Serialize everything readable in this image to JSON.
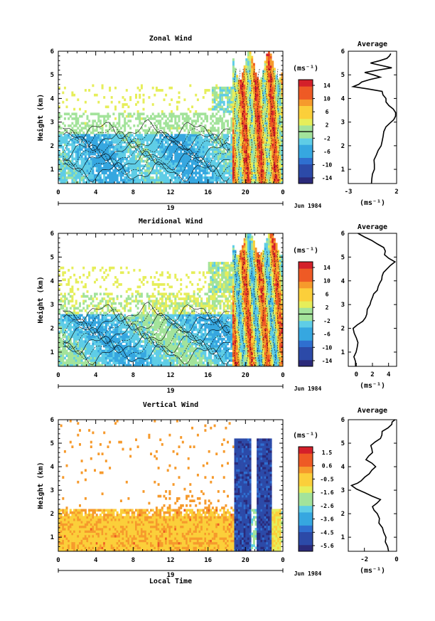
{
  "date_label": "Jun 1984",
  "shared_xlabel": "Local Time",
  "chart_data": [
    {
      "type": "heatmap",
      "title": "Zonal Wind",
      "ylabel": "Height (km)",
      "ylim": [
        0.4,
        6
      ],
      "yticks": [
        "1",
        "2",
        "3",
        "4",
        "5",
        "6"
      ],
      "xlim_hours": [
        0,
        24
      ],
      "xticks": [
        "0",
        "4",
        "8",
        "12",
        "16",
        "20",
        "0"
      ],
      "day_label": "19",
      "colorbar_unit": "(ms⁻¹)",
      "colorbar_ticks": [
        "14",
        "10",
        "6",
        "2",
        "-2",
        "-6",
        "-10",
        "-14"
      ],
      "colorbar_range": [
        -16,
        16
      ],
      "colormap": [
        "#2b2a7a",
        "#2c4aa8",
        "#2f6fd0",
        "#36a7e0",
        "#5fcde6",
        "#a3e39b",
        "#e6ee5a",
        "#fbcf3a",
        "#f69a2c",
        "#ee5a25",
        "#d4202a"
      ],
      "profile": {
        "title": "Average",
        "xlabel": "(ms⁻¹)",
        "xlim": [
          -3,
          2
        ],
        "xticks": [
          "-3",
          "2"
        ],
        "yticks": [
          "1",
          "2",
          "3",
          "4",
          "5",
          "6"
        ],
        "heights": [
          0.4,
          0.8,
          1.2,
          1.6,
          2.0,
          2.4,
          2.8,
          3.1,
          3.4,
          3.7,
          4.0,
          4.3,
          4.5,
          4.7,
          4.9,
          5.1,
          5.3,
          5.5,
          5.7,
          5.9
        ],
        "values": [
          -0.6,
          -0.5,
          -0.3,
          -0.1,
          0.4,
          0.6,
          0.9,
          1.7,
          1.9,
          1.2,
          0.9,
          0.5,
          -2.5,
          -1.6,
          0.3,
          -1.3,
          1.5,
          -0.7,
          1.0,
          1.4
        ]
      }
    },
    {
      "type": "heatmap",
      "title": "Meridional Wind",
      "ylabel": "Height (km)",
      "ylim": [
        0.4,
        6
      ],
      "yticks": [
        "1",
        "2",
        "3",
        "4",
        "5",
        "6"
      ],
      "xlim_hours": [
        0,
        24
      ],
      "xticks": [
        "0",
        "4",
        "8",
        "12",
        "16",
        "20",
        "0"
      ],
      "day_label": "19",
      "colorbar_unit": "(ms⁻¹)",
      "colorbar_ticks": [
        "14",
        "10",
        "6",
        "2",
        "-2",
        "-6",
        "-10",
        "-14"
      ],
      "colorbar_range": [
        -16,
        16
      ],
      "colormap": [
        "#2b2a7a",
        "#2c4aa8",
        "#2f6fd0",
        "#36a7e0",
        "#5fcde6",
        "#a3e39b",
        "#e6ee5a",
        "#fbcf3a",
        "#f69a2c",
        "#ee5a25",
        "#d4202a"
      ],
      "profile": {
        "title": "Average",
        "xlabel": "(ms⁻¹)",
        "xlim": [
          -1,
          5
        ],
        "xticks": [
          "0",
          "2",
          "4"
        ],
        "yticks": [
          "1",
          "2",
          "3",
          "4",
          "5",
          "6"
        ],
        "heights": [
          0.4,
          0.8,
          1.2,
          1.6,
          2.0,
          2.3,
          2.6,
          3.0,
          3.3,
          3.6,
          3.9,
          4.2,
          4.5,
          4.8,
          5.1,
          5.4,
          5.7,
          6.0
        ],
        "values": [
          -0.1,
          -0.3,
          0.1,
          0.0,
          -0.4,
          0.8,
          1.3,
          1.7,
          2.0,
          2.6,
          2.9,
          3.2,
          3.8,
          4.8,
          3.5,
          3.4,
          1.9,
          0.2
        ]
      }
    },
    {
      "type": "heatmap",
      "title": "Vertical Wind",
      "ylabel": "Height (km)",
      "ylim": [
        0.4,
        6
      ],
      "yticks": [
        "1",
        "2",
        "3",
        "4",
        "5",
        "6"
      ],
      "xlim_hours": [
        0,
        24
      ],
      "xticks": [
        "0",
        "4",
        "8",
        "12",
        "16",
        "20",
        "0"
      ],
      "day_label": "19",
      "colorbar_unit": "(ms⁻¹)",
      "colorbar_ticks": [
        "1.5",
        "0.6",
        "-0.5",
        "-1.6",
        "-2.6",
        "-3.6",
        "-4.5",
        "-5.6"
      ],
      "colorbar_range": [
        -6.2,
        2.1
      ],
      "colormap": [
        "#2b2a7a",
        "#2c4aa8",
        "#2f6fd0",
        "#36a7e0",
        "#5fcde6",
        "#a3e39b",
        "#e6ee5a",
        "#fbcf3a",
        "#f69a2c",
        "#ee5a25",
        "#d4202a"
      ],
      "profile": {
        "title": "Average",
        "xlabel": "(ms⁻¹)",
        "xlim": [
          -3,
          0
        ],
        "xticks": [
          "-2",
          "0"
        ],
        "yticks": [
          "1",
          "2",
          "3",
          "4",
          "5",
          "6"
        ],
        "heights": [
          0.4,
          0.8,
          1.2,
          1.6,
          2.0,
          2.3,
          2.6,
          2.9,
          3.2,
          3.4,
          3.7,
          4.0,
          4.3,
          4.6,
          4.9,
          5.2,
          5.5,
          5.8,
          6.0
        ],
        "values": [
          -0.5,
          -0.7,
          -0.8,
          -1.1,
          -1.2,
          -1.5,
          -1.0,
          -2.0,
          -2.8,
          -2.2,
          -1.7,
          -1.3,
          -1.9,
          -1.5,
          -1.6,
          -1.0,
          -0.9,
          -0.3,
          -0.1
        ]
      }
    }
  ]
}
